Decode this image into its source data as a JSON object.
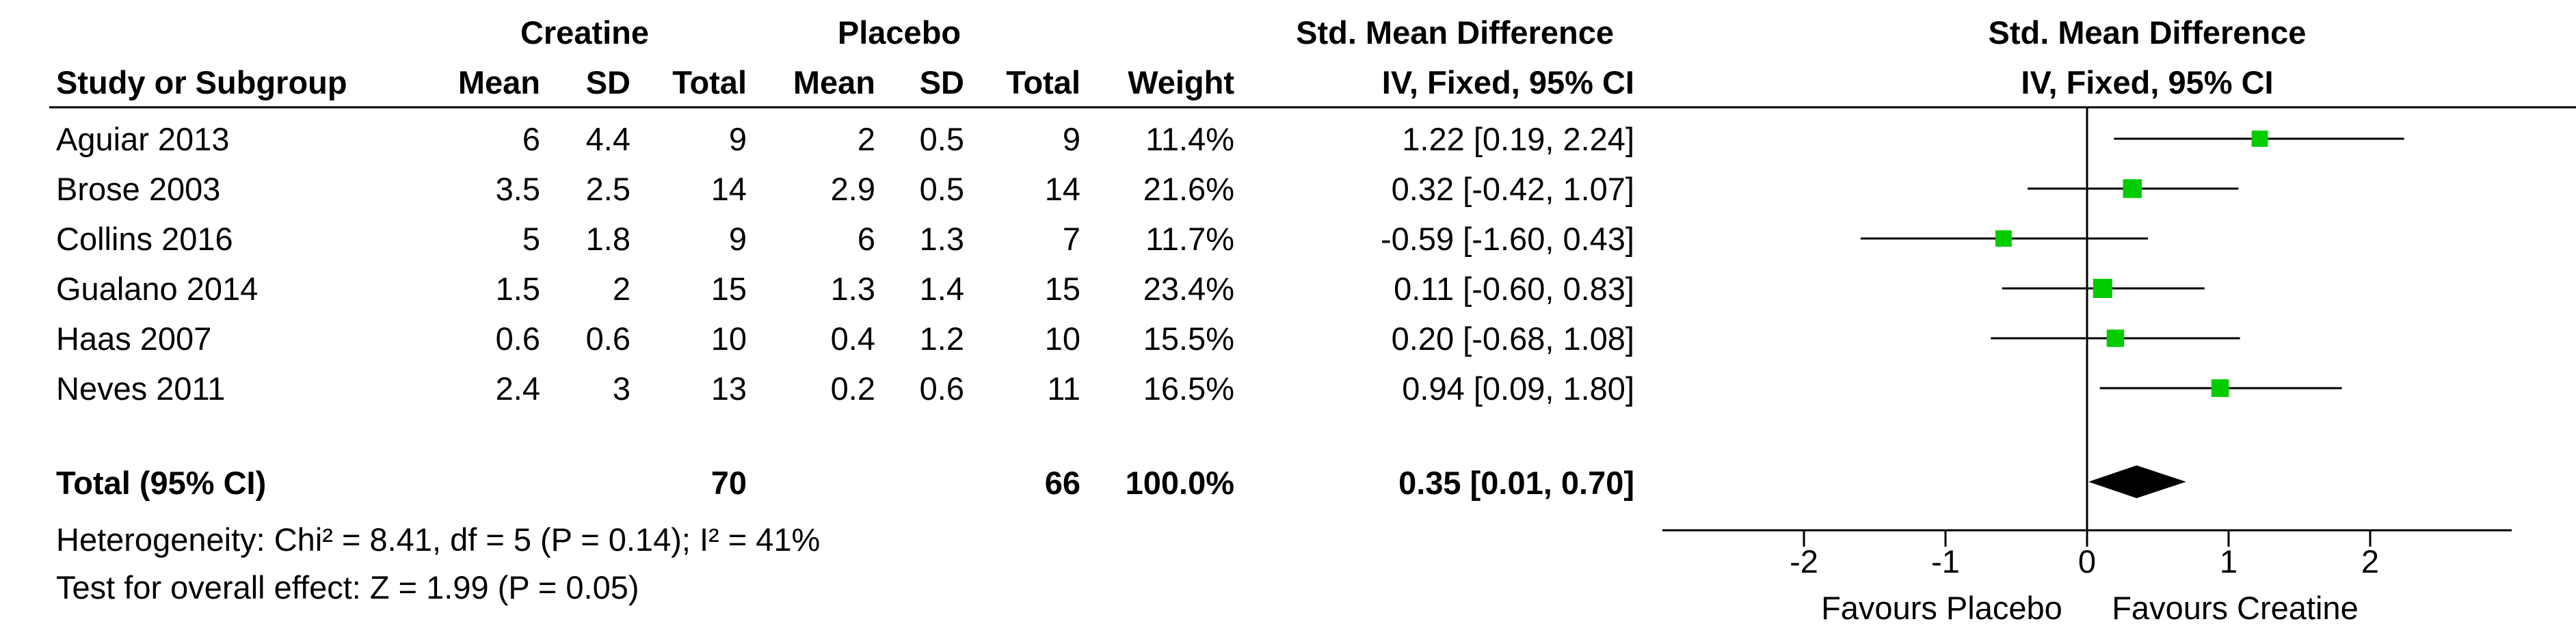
{
  "group_headers": {
    "experimental": "Creatine",
    "control": "Placebo",
    "effect_col": "Std. Mean Difference",
    "plot_col": "Std. Mean Difference"
  },
  "columns": {
    "study": "Study or Subgroup",
    "e_mean": "Mean",
    "e_sd": "SD",
    "e_total": "Total",
    "c_mean": "Mean",
    "c_sd": "SD",
    "c_total": "Total",
    "weight": "Weight",
    "effect": "IV, Fixed, 95% CI",
    "plot": "IV, Fixed, 95% CI"
  },
  "studies": [
    {
      "study": "Aguiar 2013",
      "e_mean": "6",
      "e_sd": "4.4",
      "e_total": "9",
      "c_mean": "2",
      "c_sd": "0.5",
      "c_total": "9",
      "weight": "11.4%",
      "effect": "1.22 [0.19, 2.24]"
    },
    {
      "study": "Brose 2003",
      "e_mean": "3.5",
      "e_sd": "2.5",
      "e_total": "14",
      "c_mean": "2.9",
      "c_sd": "0.5",
      "c_total": "14",
      "weight": "21.6%",
      "effect": "0.32 [-0.42, 1.07]"
    },
    {
      "study": "Collins 2016",
      "e_mean": "5",
      "e_sd": "1.8",
      "e_total": "9",
      "c_mean": "6",
      "c_sd": "1.3",
      "c_total": "7",
      "weight": "11.7%",
      "effect": "-0.59 [-1.60, 0.43]"
    },
    {
      "study": "Gualano 2014",
      "e_mean": "1.5",
      "e_sd": "2",
      "e_total": "15",
      "c_mean": "1.3",
      "c_sd": "1.4",
      "c_total": "15",
      "weight": "23.4%",
      "effect": "0.11 [-0.60, 0.83]"
    },
    {
      "study": "Haas 2007",
      "e_mean": "0.6",
      "e_sd": "0.6",
      "e_total": "10",
      "c_mean": "0.4",
      "c_sd": "1.2",
      "c_total": "10",
      "weight": "15.5%",
      "effect": "0.20 [-0.68, 1.08]"
    },
    {
      "study": "Neves 2011",
      "e_mean": "2.4",
      "e_sd": "3",
      "e_total": "13",
      "c_mean": "0.2",
      "c_sd": "0.6",
      "c_total": "11",
      "weight": "16.5%",
      "effect": "0.94 [0.09, 1.80]"
    }
  ],
  "total": {
    "label": "Total (95% CI)",
    "e_total": "70",
    "c_total": "66",
    "weight": "100.0%",
    "effect": "0.35 [0.01, 0.70]"
  },
  "heterogeneity": "Heterogeneity: Chi² = 8.41, df = 5 (P = 0.14); I² = 41%",
  "overall_effect": "Test for overall effect: Z = 1.99 (P = 0.05)",
  "favours_left": "Favours Placebo",
  "favours_right": "Favours Creatine",
  "colors": {
    "marker": "#00cc00",
    "diamond": "#000000",
    "line": "#000000"
  },
  "chart_data": {
    "type": "forest",
    "xlim": [
      -3,
      3
    ],
    "ticks": [
      -2,
      -1,
      0,
      1,
      2
    ],
    "tick_labels": [
      "-2",
      "-1",
      "0",
      "1",
      "2"
    ],
    "points": [
      {
        "study": "Aguiar 2013",
        "est": 1.22,
        "lo": 0.19,
        "hi": 2.24,
        "weight": 11.4
      },
      {
        "study": "Brose 2003",
        "est": 0.32,
        "lo": -0.42,
        "hi": 1.07,
        "weight": 21.6
      },
      {
        "study": "Collins 2016",
        "est": -0.59,
        "lo": -1.6,
        "hi": 0.43,
        "weight": 11.7
      },
      {
        "study": "Gualano 2014",
        "est": 0.11,
        "lo": -0.6,
        "hi": 0.83,
        "weight": 23.4
      },
      {
        "study": "Haas 2007",
        "est": 0.2,
        "lo": -0.68,
        "hi": 1.08,
        "weight": 15.5
      },
      {
        "study": "Neves 2011",
        "est": 0.94,
        "lo": 0.09,
        "hi": 1.8,
        "weight": 16.5
      }
    ],
    "pooled": {
      "est": 0.35,
      "lo": 0.01,
      "hi": 0.7
    }
  }
}
